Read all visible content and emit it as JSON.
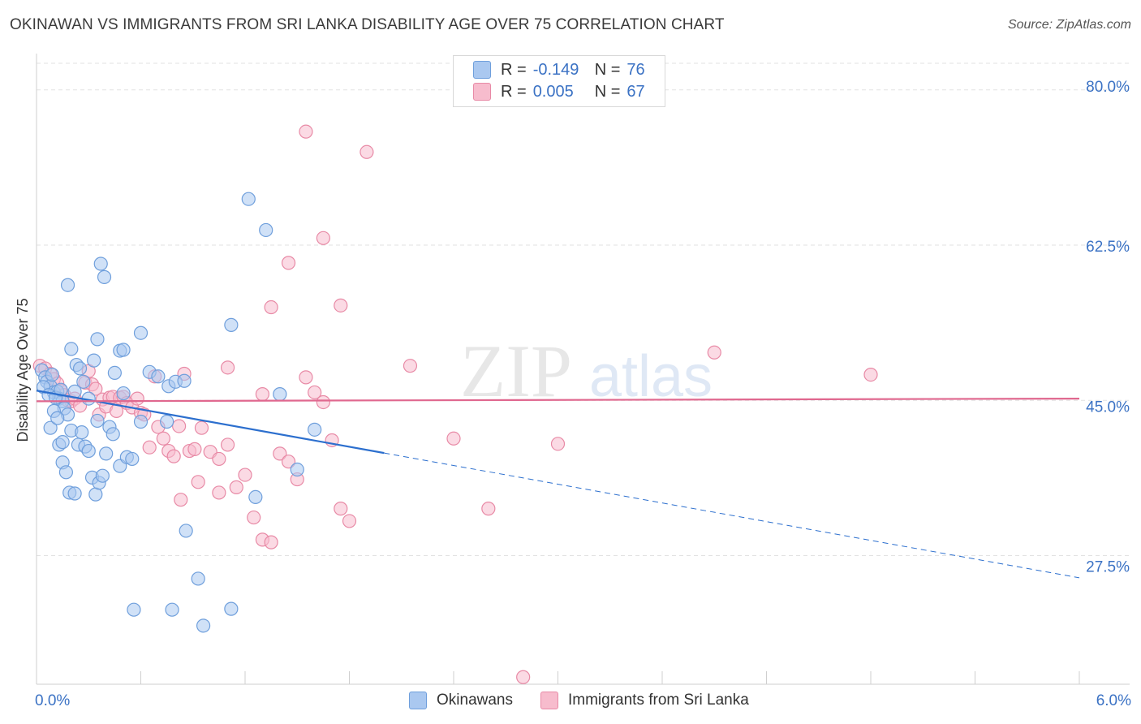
{
  "title": "OKINAWAN VS IMMIGRANTS FROM SRI LANKA DISABILITY AGE OVER 75 CORRELATION CHART",
  "source": "Source: ZipAtlas.com",
  "watermark": {
    "part1": "ZIP",
    "part2": "atlas"
  },
  "colors": {
    "blue_fill": "#aac8f0",
    "blue_stroke": "#6f9fdc",
    "blue_line": "#2c6fce",
    "pink_fill": "#f7bccd",
    "pink_stroke": "#e88aa6",
    "pink_line": "#e0688f",
    "axis_label": "#3b72c4",
    "grid": "#e2e2e2"
  },
  "legend": {
    "rows": [
      {
        "r_label": "R =",
        "r_value": "-0.149",
        "n_label": "N =",
        "n_value": "76",
        "color": "#aac8f0"
      },
      {
        "r_label": "R =",
        "r_value": "0.005",
        "n_label": "N =",
        "n_value": "67",
        "color": "#f7bccd"
      }
    ]
  },
  "bottom_legend": {
    "items": [
      {
        "label": "Okinawans",
        "color": "#aac8f0"
      },
      {
        "label": "Immigrants from Sri Lanka",
        "color": "#f7bccd"
      }
    ]
  },
  "chart_data": {
    "type": "scatter",
    "title": "OKINAWAN VS IMMIGRANTS FROM SRI LANKA DISABILITY AGE OVER 75 CORRELATION CHART",
    "xlabel": "",
    "ylabel": "Disability Age Over 75",
    "xlim": [
      0.0,
      6.0
    ],
    "ylim": [
      13.0,
      83.0
    ],
    "x_tick_labels": [
      "0.0%",
      "6.0%"
    ],
    "y_ticks": [
      27.5,
      45.0,
      62.5,
      80.0
    ],
    "y_tick_labels": [
      "27.5%",
      "45.0%",
      "62.5%",
      "80.0%"
    ],
    "grid": true,
    "series": [
      {
        "name": "Okinawans",
        "r": -0.149,
        "n": 76,
        "trend": {
          "x0": 0.0,
          "y0": 46.1,
          "x_solid_end": 2.0,
          "x1": 6.0,
          "y1": 25.0
        },
        "points": [
          [
            0.03,
            48.4
          ],
          [
            0.05,
            47.6
          ],
          [
            0.06,
            47.1
          ],
          [
            0.08,
            46.6
          ],
          [
            0.1,
            45.9
          ],
          [
            0.12,
            46.0
          ],
          [
            0.13,
            45.2
          ],
          [
            0.15,
            44.9
          ],
          [
            0.04,
            46.5
          ],
          [
            0.07,
            45.6
          ],
          [
            0.09,
            47.9
          ],
          [
            0.11,
            45.3
          ],
          [
            0.14,
            46.2
          ],
          [
            0.16,
            44.1
          ],
          [
            0.18,
            43.4
          ],
          [
            0.2,
            41.6
          ],
          [
            0.08,
            41.9
          ],
          [
            0.1,
            43.8
          ],
          [
            0.13,
            40.0
          ],
          [
            0.15,
            38.0
          ],
          [
            0.17,
            36.9
          ],
          [
            0.19,
            34.6
          ],
          [
            0.22,
            34.5
          ],
          [
            0.24,
            40.0
          ],
          [
            0.26,
            41.4
          ],
          [
            0.28,
            39.8
          ],
          [
            0.3,
            39.3
          ],
          [
            0.32,
            36.3
          ],
          [
            0.34,
            34.4
          ],
          [
            0.36,
            35.7
          ],
          [
            0.38,
            36.5
          ],
          [
            0.4,
            39.0
          ],
          [
            0.42,
            42.0
          ],
          [
            0.44,
            41.2
          ],
          [
            0.48,
            37.6
          ],
          [
            0.5,
            45.8
          ],
          [
            0.52,
            38.6
          ],
          [
            0.55,
            38.4
          ],
          [
            0.18,
            58.0
          ],
          [
            0.2,
            50.8
          ],
          [
            0.23,
            49.0
          ],
          [
            0.25,
            48.6
          ],
          [
            0.27,
            47.1
          ],
          [
            0.3,
            45.2
          ],
          [
            0.33,
            49.5
          ],
          [
            0.35,
            51.9
          ],
          [
            0.37,
            60.4
          ],
          [
            0.39,
            58.9
          ],
          [
            0.45,
            48.1
          ],
          [
            0.48,
            50.6
          ],
          [
            0.5,
            50.7
          ],
          [
            0.6,
            42.6
          ],
          [
            0.65,
            48.2
          ],
          [
            0.7,
            47.7
          ],
          [
            0.75,
            42.6
          ],
          [
            0.76,
            46.6
          ],
          [
            0.8,
            47.1
          ],
          [
            0.15,
            40.3
          ],
          [
            0.12,
            43.0
          ],
          [
            0.35,
            42.7
          ],
          [
            0.6,
            52.6
          ],
          [
            0.22,
            46.0
          ],
          [
            0.56,
            21.4
          ],
          [
            0.78,
            21.4
          ],
          [
            0.86,
            30.3
          ],
          [
            0.93,
            24.9
          ],
          [
            0.96,
            19.6
          ],
          [
            1.12,
            21.5
          ],
          [
            1.12,
            53.5
          ],
          [
            1.22,
            67.7
          ],
          [
            1.26,
            34.1
          ],
          [
            1.32,
            64.2
          ],
          [
            1.4,
            45.7
          ],
          [
            1.5,
            37.2
          ],
          [
            1.6,
            41.7
          ],
          [
            0.85,
            47.2
          ]
        ]
      },
      {
        "name": "Immigrants from Sri Lanka",
        "r": 0.005,
        "n": 67,
        "trend": {
          "x0": 0.0,
          "y0": 44.9,
          "x1": 6.0,
          "y1": 45.2
        },
        "points": [
          [
            0.02,
            48.9
          ],
          [
            0.05,
            48.6
          ],
          [
            0.08,
            48.0
          ],
          [
            0.1,
            47.4
          ],
          [
            0.12,
            46.9
          ],
          [
            0.14,
            46.1
          ],
          [
            0.16,
            45.6
          ],
          [
            0.18,
            45.0
          ],
          [
            0.2,
            44.9
          ],
          [
            0.22,
            45.2
          ],
          [
            0.25,
            44.4
          ],
          [
            0.28,
            47.0
          ],
          [
            0.3,
            48.3
          ],
          [
            0.32,
            46.8
          ],
          [
            0.34,
            46.3
          ],
          [
            0.36,
            43.4
          ],
          [
            0.38,
            45.1
          ],
          [
            0.4,
            44.3
          ],
          [
            0.42,
            45.3
          ],
          [
            0.44,
            45.4
          ],
          [
            0.46,
            43.8
          ],
          [
            0.48,
            45.3
          ],
          [
            0.5,
            45.4
          ],
          [
            0.52,
            44.7
          ],
          [
            0.55,
            44.2
          ],
          [
            0.58,
            45.2
          ],
          [
            0.6,
            43.6
          ],
          [
            0.62,
            43.4
          ],
          [
            0.65,
            39.7
          ],
          [
            0.68,
            47.7
          ],
          [
            0.7,
            42.0
          ],
          [
            0.73,
            40.7
          ],
          [
            0.76,
            39.3
          ],
          [
            0.79,
            38.7
          ],
          [
            0.82,
            42.1
          ],
          [
            0.85,
            48.0
          ],
          [
            0.88,
            39.3
          ],
          [
            0.91,
            39.5
          ],
          [
            0.95,
            41.9
          ],
          [
            1.0,
            39.2
          ],
          [
            1.05,
            38.4
          ],
          [
            1.1,
            48.7
          ],
          [
            1.15,
            35.2
          ],
          [
            1.2,
            36.6
          ],
          [
            1.25,
            31.8
          ],
          [
            1.3,
            29.3
          ],
          [
            1.35,
            29.0
          ],
          [
            1.4,
            39.0
          ],
          [
            1.45,
            38.1
          ],
          [
            1.5,
            36.1
          ],
          [
            1.55,
            47.6
          ],
          [
            1.6,
            45.9
          ],
          [
            1.65,
            44.8
          ],
          [
            1.7,
            40.5
          ],
          [
            1.75,
            32.8
          ],
          [
            1.8,
            31.4
          ],
          [
            1.3,
            45.7
          ],
          [
            0.83,
            33.8
          ],
          [
            0.93,
            35.8
          ],
          [
            1.05,
            34.6
          ],
          [
            1.1,
            40.0
          ],
          [
            1.35,
            55.5
          ],
          [
            1.45,
            60.5
          ],
          [
            1.55,
            75.3
          ],
          [
            1.65,
            63.3
          ],
          [
            1.75,
            55.7
          ],
          [
            1.9,
            73.0
          ]
        ],
        "extra_points": [
          [
            2.15,
            48.9
          ],
          [
            2.4,
            40.7
          ],
          [
            2.6,
            32.8
          ],
          [
            2.8,
            13.8
          ],
          [
            3.0,
            40.1
          ],
          [
            3.9,
            50.4
          ],
          [
            4.8,
            47.9
          ]
        ]
      }
    ]
  }
}
